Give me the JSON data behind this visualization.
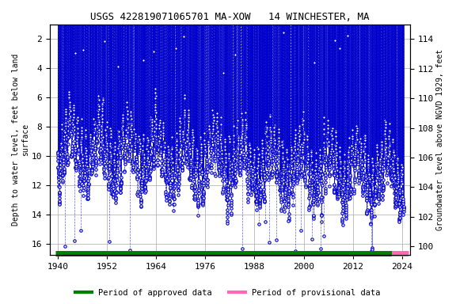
{
  "title": "USGS 422819071065701 MA-XOW   14 WINCHESTER, MA",
  "title_fontsize": 9,
  "ylabel_left": "Depth to water level, feet below land\nsurface",
  "ylabel_right": "Groundwater level above NGVD 1929, feet",
  "xlim": [
    1938,
    2026
  ],
  "ylim_left": [
    16.8,
    1.0
  ],
  "ylim_right": [
    99.4,
    115.0
  ],
  "xticks": [
    1940,
    1952,
    1964,
    1976,
    1988,
    2000,
    2012,
    2024
  ],
  "yticks_left": [
    2,
    4,
    6,
    8,
    10,
    12,
    14,
    16
  ],
  "yticks_right": [
    100,
    102,
    104,
    106,
    108,
    110,
    112,
    114
  ],
  "approved_color": "#008000",
  "provisional_color": "#ff69b4",
  "dot_face_color": "#ffffff",
  "dot_edge_color": "#0000cc",
  "dot_size": 6,
  "dot_linewidth": 0.8,
  "vline_color": "#0000cc",
  "vline_linewidth": 0.5,
  "grid_color": "#aaaaaa",
  "background_color": "#ffffff",
  "approved_x_start": 1939.5,
  "approved_x_end": 2021.5,
  "provisional_x_start": 2021.5,
  "provisional_x_end": 2025.5,
  "legend_approved": "Period of approved data",
  "legend_provisional": "Period of provisional data",
  "font_family": "monospace"
}
